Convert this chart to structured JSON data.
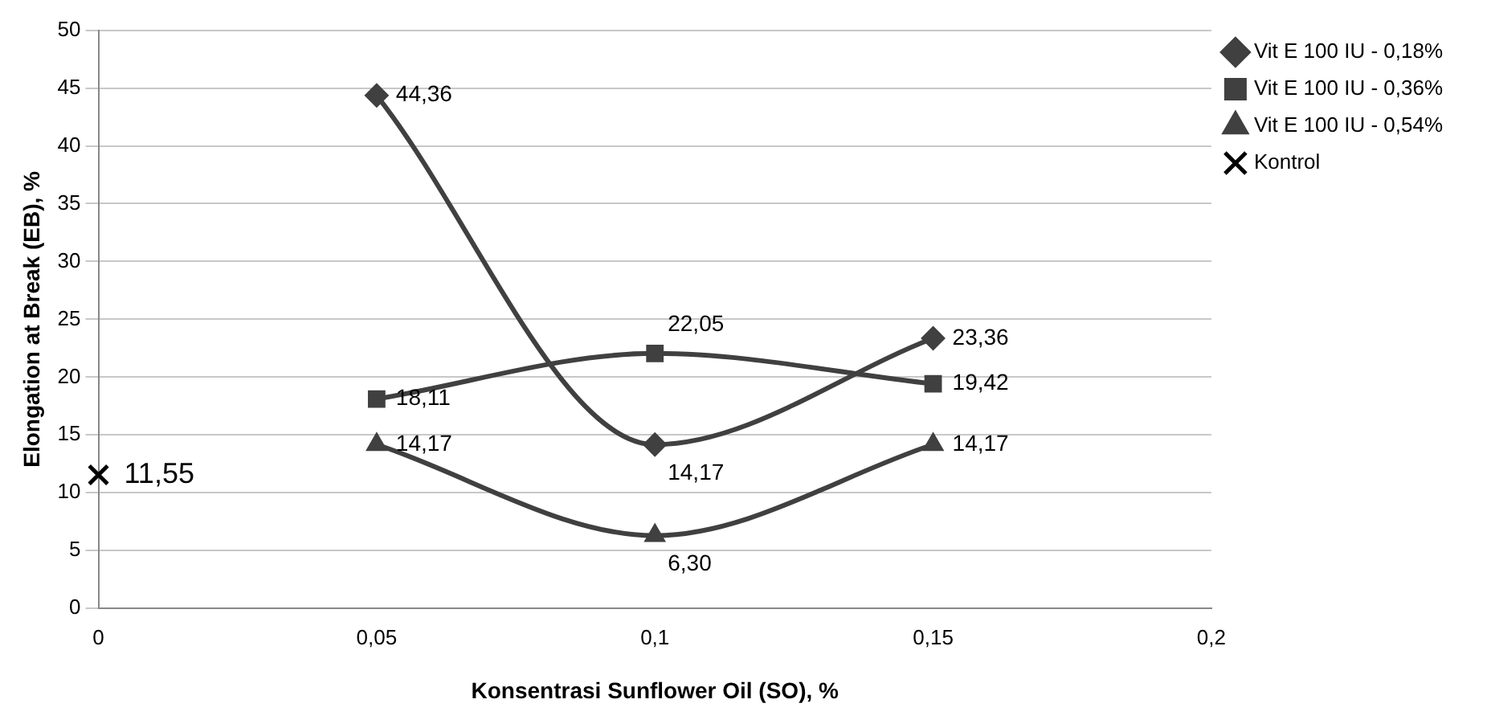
{
  "chart_data": {
    "type": "line",
    "xlabel": "Konsentrasi Sunflower Oil (SO), %",
    "ylabel": "Elongation at Break (EB), %",
    "xlim": [
      0,
      0.2
    ],
    "xticks": [
      {
        "value": 0,
        "label": "0"
      },
      {
        "value": 0.05,
        "label": "0,05"
      },
      {
        "value": 0.1,
        "label": "0,1"
      },
      {
        "value": 0.15,
        "label": "0,15"
      },
      {
        "value": 0.2,
        "label": "0,2"
      }
    ],
    "ylim": [
      0,
      50
    ],
    "yticks": [
      0,
      5,
      10,
      15,
      20,
      25,
      30,
      35,
      40,
      45,
      50
    ],
    "grid": "y",
    "legend": "right",
    "series": [
      {
        "name": "Vit E 100 IU - 0,18%",
        "color": "#404040",
        "marker": "diamond",
        "x": [
          0.05,
          0.1,
          0.15
        ],
        "values": [
          44.36,
          14.17,
          23.36
        ],
        "value_labels": [
          "44,36",
          "14,17",
          "23,36"
        ]
      },
      {
        "name": "Vit E 100 IU - 0,36%",
        "color": "#404040",
        "marker": "square",
        "x": [
          0.05,
          0.1,
          0.15
        ],
        "values": [
          18.11,
          22.05,
          19.42
        ],
        "value_labels": [
          "18,11",
          "22,05",
          "19,42"
        ]
      },
      {
        "name": "Vit E 100 IU - 0,54%",
        "color": "#404040",
        "marker": "triangle",
        "x": [
          0.05,
          0.1,
          0.15
        ],
        "values": [
          14.17,
          6.3,
          14.17
        ],
        "value_labels": [
          "14,17",
          "6,30",
          "14,17"
        ]
      },
      {
        "name": "Kontrol",
        "type": "scatter",
        "color": "#000000",
        "marker": "cross",
        "x": [
          0
        ],
        "values": [
          11.55
        ],
        "value_labels": [
          "11,55"
        ]
      }
    ]
  }
}
